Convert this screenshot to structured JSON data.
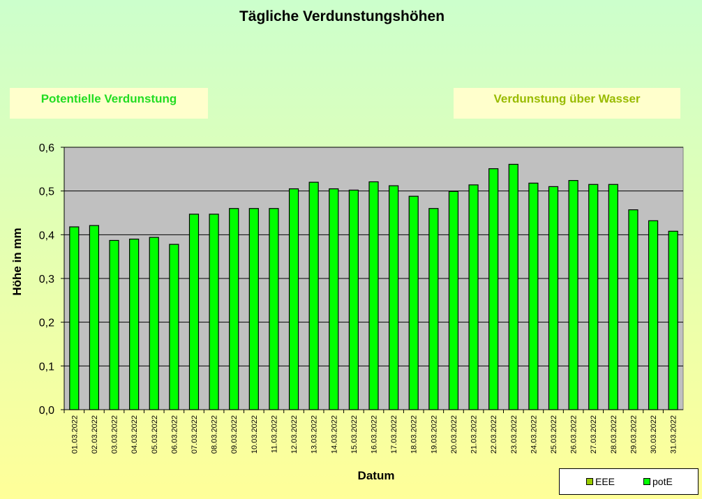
{
  "colors": {
    "bar_fill": "#00ff00",
    "bar_stroke": "#000000",
    "plot_bg": "#c0c0c0",
    "eee_swatch": "#99cc00",
    "pote_swatch": "#00ff00"
  },
  "boxes": {
    "left_label": "Potentielle Verdunstung",
    "right_label": "Verdunstung über Wasser"
  },
  "legend": [
    {
      "name": "EEE",
      "color": "#99cc00"
    },
    {
      "name": "potE",
      "color": "#00ff00"
    }
  ],
  "chart_data": {
    "type": "bar",
    "title": "Tägliche Verdunstungshöhen",
    "xlabel": "Datum",
    "ylabel": "Höhe in mm",
    "ylim": [
      0,
      0.6
    ],
    "yticks": [
      "0,0",
      "0,1",
      "0,2",
      "0,3",
      "0,4",
      "0,5",
      "0,6"
    ],
    "grid": true,
    "categories": [
      "01.03.2022",
      "02.03.2022",
      "03.03.2022",
      "04.03.2022",
      "05.03.2022",
      "06.03.2022",
      "07.03.2022",
      "08.03.2022",
      "09.03.2022",
      "10.03.2022",
      "11.03.2022",
      "12.03.2022",
      "13.03.2022",
      "14.03.2022",
      "15.03.2022",
      "16.03.2022",
      "17.03.2022",
      "18.03.2022",
      "19.03.2022",
      "20.03.2022",
      "21.03.2022",
      "22.03.2022",
      "23.03.2022",
      "24.03.2022",
      "25.03.2022",
      "26.03.2022",
      "27.03.2022",
      "28.03.2022",
      "29.03.2022",
      "30.03.2022",
      "31.03.2022"
    ],
    "series": [
      {
        "name": "potE",
        "values": [
          0.418,
          0.421,
          0.387,
          0.39,
          0.394,
          0.378,
          0.447,
          0.447,
          0.46,
          0.46,
          0.46,
          0.505,
          0.52,
          0.505,
          0.502,
          0.521,
          0.512,
          0.488,
          0.46,
          0.499,
          0.514,
          0.551,
          0.561,
          0.518,
          0.51,
          0.524,
          0.515,
          0.515,
          0.457,
          0.432,
          0.408
        ]
      }
    ]
  }
}
